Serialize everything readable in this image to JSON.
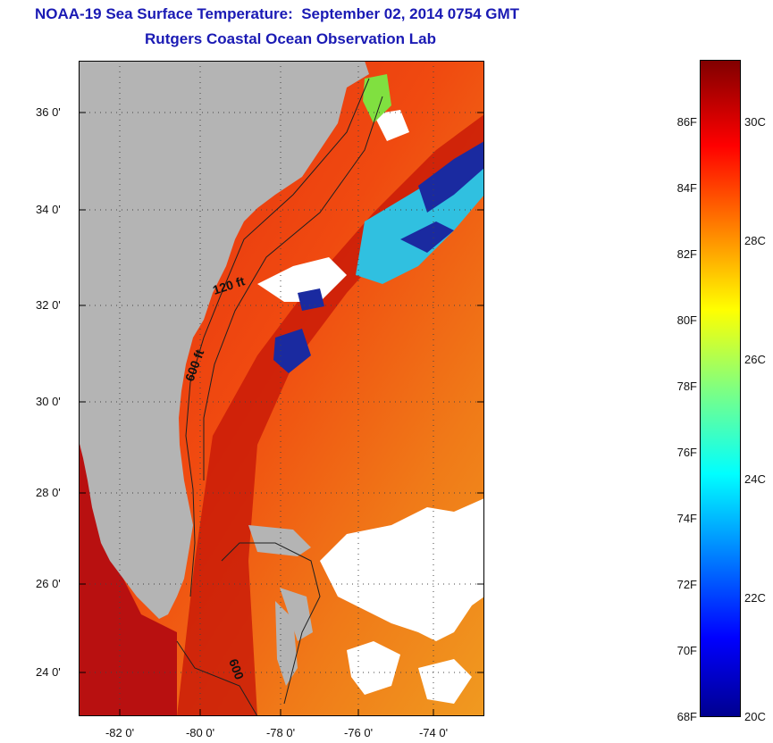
{
  "title": "NOAA-19 Sea Surface Temperature:  September 02, 2014 0754 GMT",
  "subtitle": "Rutgers Coastal Ocean Observation Lab",
  "map": {
    "lat_labels": [
      "36 0'",
      "34 0'",
      "32 0'",
      "30 0'",
      "28 0'",
      "26 0'",
      "24 0'"
    ],
    "lon_labels": [
      "-82 0'",
      "-80 0'",
      "-78 0'",
      "-76 0'",
      "-74 0'"
    ],
    "lat_range": [
      23,
      37
    ],
    "lon_range": [
      -83,
      -73
    ],
    "contour_labels": [
      "120 ft",
      "600 ft",
      "600"
    ],
    "colors": {
      "land": "#b4b4b4",
      "cloud": "#ffffff",
      "warm_ocean": "#e03010",
      "cool_ocean": "#1a2aa0"
    }
  },
  "colorbar": {
    "fahrenheit_labels": [
      "86F",
      "84F",
      "82F",
      "80F",
      "78F",
      "76F",
      "74F",
      "72F",
      "70F",
      "68F"
    ],
    "celsius_labels": [
      "30C",
      "28C",
      "26C",
      "24C",
      "22C",
      "20C"
    ],
    "range_f": [
      68,
      88
    ],
    "colormap": "jet"
  }
}
